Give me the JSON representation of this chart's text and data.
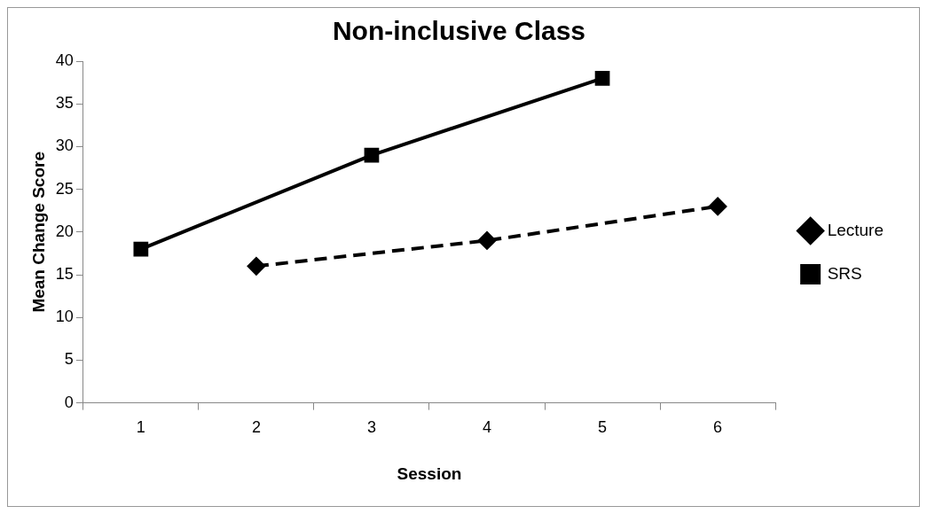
{
  "chart_data": {
    "type": "line",
    "title": "Non-inclusive Class",
    "xlabel": "Session",
    "ylabel": "Mean Change Score",
    "categories": [
      "1",
      "2",
      "3",
      "4",
      "5",
      "6"
    ],
    "series": [
      {
        "name": "Lecture",
        "color": "#000000",
        "values": [
          null,
          16,
          null,
          19,
          null,
          23
        ],
        "marker": "diamond",
        "line_style": "dashed"
      },
      {
        "name": "SRS",
        "color": "#000000",
        "values": [
          18,
          null,
          29,
          null,
          38,
          null
        ],
        "marker": "square",
        "line_style": "solid"
      }
    ],
    "ylim": [
      0,
      40
    ],
    "yticks": [
      0,
      5,
      10,
      15,
      20,
      25,
      30,
      35,
      40
    ],
    "grid": false,
    "legend": "right"
  }
}
